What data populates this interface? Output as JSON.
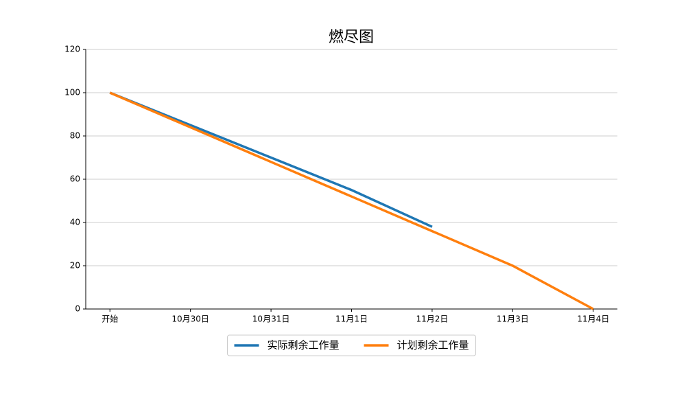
{
  "chart_data": {
    "type": "line",
    "title": "燃尽图",
    "categories": [
      "开始",
      "10月30日",
      "10月31日",
      "11月1日",
      "11月2日",
      "11月3日",
      "11月4日"
    ],
    "series": [
      {
        "name": "实际剩余工作量",
        "color": "#1f77b4",
        "values": [
          100,
          85,
          70,
          55,
          38,
          null,
          null
        ]
      },
      {
        "name": "计划剩余工作量",
        "color": "#ff7f0e",
        "values": [
          100,
          84,
          68,
          52,
          36,
          20,
          0
        ]
      }
    ],
    "ylim": [
      0,
      120
    ],
    "yticks": [
      0,
      20,
      40,
      60,
      80,
      100,
      120
    ],
    "grid": true,
    "legend": "bottom"
  }
}
